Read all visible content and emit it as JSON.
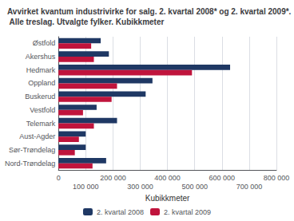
{
  "chart_data": {
    "type": "bar",
    "orientation": "horizontal",
    "title": "Avvirket kvantum industrivirke for salg. 2. kvartal 2008* og 2. kvartal 2009*. Alle treslag. Utvalgte fylker. Kubikkmeter",
    "categories": [
      "Østfold",
      "Akershus",
      "Hedmark",
      "Oppland",
      "Buskerud",
      "Vestfold",
      "Telemark",
      "Aust-Agder",
      "Sør-Trøndelag",
      "Nord-Trøndelag"
    ],
    "series": [
      {
        "name": "2. kvartal 2008",
        "color": "#1f3864",
        "values": [
          155000,
          185000,
          630000,
          345000,
          320000,
          140000,
          215000,
          100000,
          100000,
          175000
        ]
      },
      {
        "name": "2. kvartal 2009",
        "color": "#c0143c",
        "values": [
          120000,
          130000,
          490000,
          215000,
          195000,
          90000,
          130000,
          75000,
          60000,
          125000
        ]
      }
    ],
    "xlabel": "Kubikkmeter",
    "xlim": [
      0,
      800000
    ],
    "xticks": [
      0,
      {
        "value": 100000,
        "label": "100 000"
      },
      {
        "value": 200000,
        "label": "200 000"
      },
      {
        "value": 300000,
        "label": "300 000"
      },
      {
        "value": 400000,
        "label": "400 000"
      },
      {
        "value": 500000,
        "label": "500 000"
      },
      {
        "value": 600000,
        "label": "600 000"
      },
      {
        "value": 700000,
        "label": "700 000"
      },
      {
        "value": 800000,
        "label": "800 000"
      }
    ],
    "grid": true,
    "legend": "bottom"
  }
}
